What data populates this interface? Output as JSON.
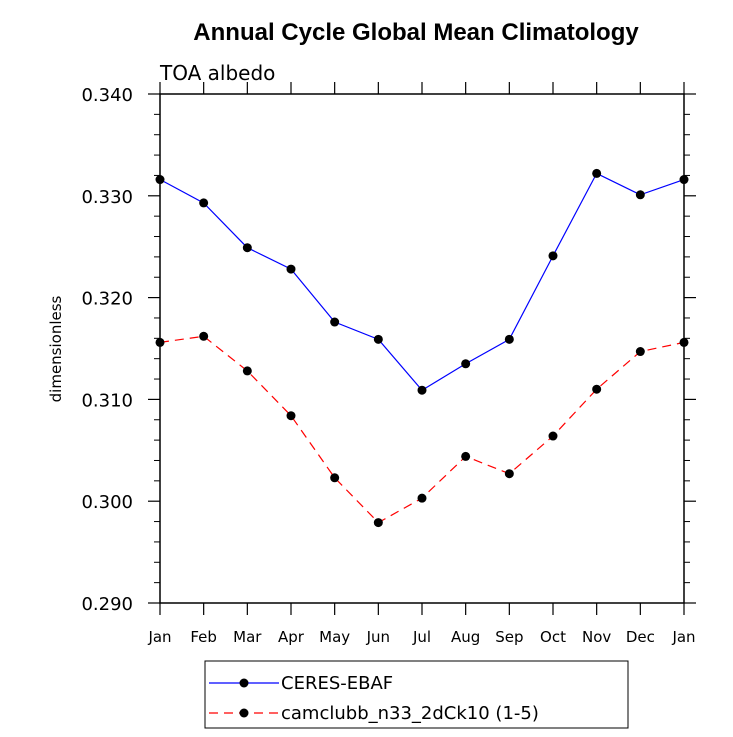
{
  "chart_data": {
    "type": "line",
    "title": "Annual Cycle Global Mean Climatology",
    "subtitle": "TOA albedo",
    "ylabel": "dimensionless",
    "xlabel": "",
    "ylim": [
      0.29,
      0.34
    ],
    "ytick_step": 0.01,
    "ytick_labels": [
      "0.290",
      "0.300",
      "0.310",
      "0.320",
      "0.330",
      "0.340"
    ],
    "categories": [
      "Jan",
      "Feb",
      "Mar",
      "Apr",
      "May",
      "Jun",
      "Jul",
      "Aug",
      "Sep",
      "Oct",
      "Nov",
      "Dec",
      "Jan"
    ],
    "grid": false,
    "legend_position": "bottom",
    "series": [
      {
        "name": "CERES-EBAF",
        "color": "#0000ff",
        "dash": "solid",
        "values": [
          0.3316,
          0.3293,
          0.3249,
          0.3228,
          0.3176,
          0.3159,
          0.3109,
          0.3135,
          0.3159,
          0.3241,
          0.3322,
          0.3301,
          0.3316
        ]
      },
      {
        "name": "camclubb_n33_2dCk10 (1-5)",
        "color": "#ff0000",
        "dash": "dashed",
        "values": [
          0.3156,
          0.3162,
          0.3128,
          0.3084,
          0.3023,
          0.2979,
          0.3003,
          0.3044,
          0.3027,
          0.3064,
          0.311,
          0.3147,
          0.3156
        ]
      }
    ]
  }
}
